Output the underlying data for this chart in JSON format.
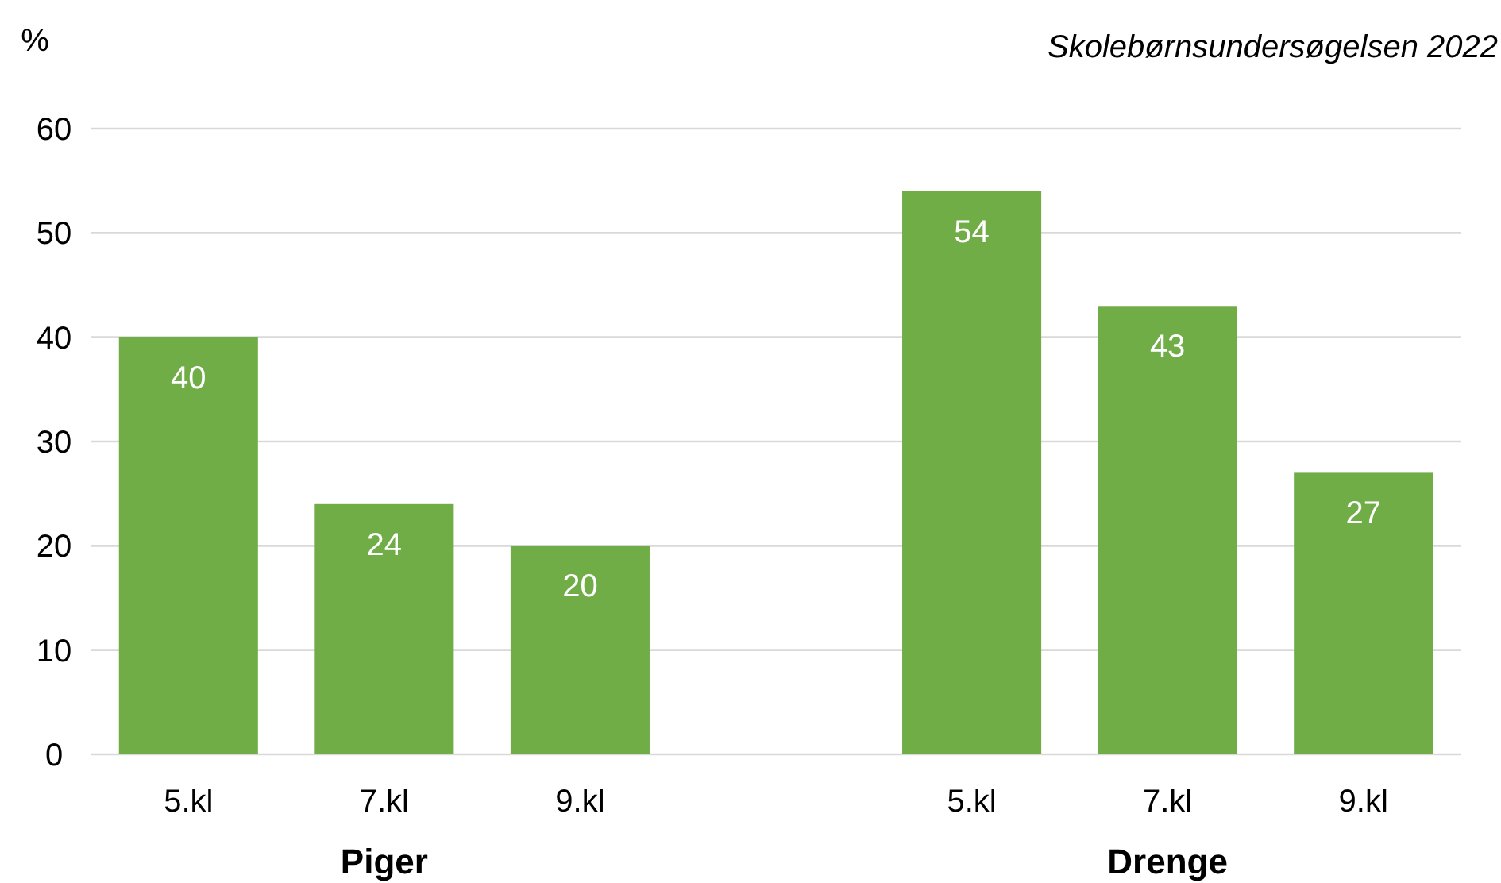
{
  "chart_data": {
    "type": "bar",
    "subtitle": "Skolebørnsundersøgelsen 2022",
    "ylabel": "%",
    "categories": [
      "5.kl",
      "7.kl",
      "9.kl",
      null,
      "5.kl",
      "7.kl",
      "9.kl"
    ],
    "values": [
      40,
      24,
      20,
      null,
      54,
      43,
      27
    ],
    "color": "#70ad47",
    "ylim": [
      0,
      60
    ],
    "yticks": [
      0,
      10,
      20,
      30,
      40,
      50,
      60
    ],
    "grid": "y",
    "data_labels": true,
    "annotations": [
      "Piger",
      "Drenge"
    ]
  }
}
